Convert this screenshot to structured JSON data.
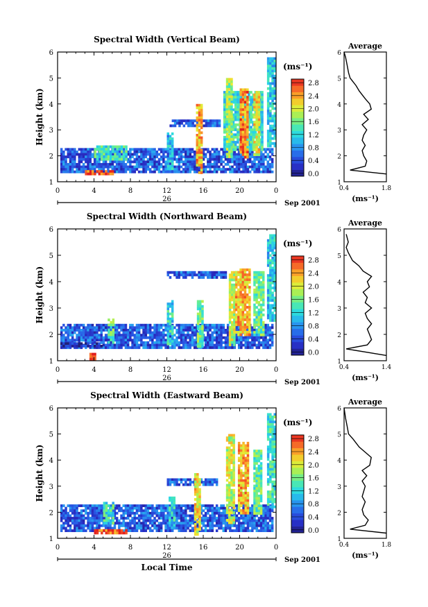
{
  "chart_data": [
    {
      "type": "heatmap",
      "title": "Spectral Width (Vertical Beam)",
      "ylabel": "Height (km)",
      "xlabel": "",
      "x_ticks": [
        "0",
        "4",
        "8",
        "12",
        "16",
        "20",
        "0"
      ],
      "y_ticks": [
        "1",
        "2",
        "3",
        "4",
        "5",
        "6"
      ],
      "xlim": [
        0,
        24
      ],
      "ylim": [
        1,
        6
      ],
      "date_day": "26",
      "date_suffix": "Sep 2001",
      "colorbar": {
        "unit": "(ms⁻¹)",
        "ticks": [
          "0.0",
          "0.4",
          "0.8",
          "1.2",
          "1.6",
          "2.0",
          "2.4",
          "2.8"
        ],
        "range": [
          0.0,
          3.0
        ]
      },
      "features": [
        {
          "x": [
            0.3,
            23.5
          ],
          "y": [
            1.35,
            2.3
          ],
          "v": 0.6
        },
        {
          "x": [
            3.0,
            6.0
          ],
          "y": [
            1.3,
            1.45
          ],
          "v": 2.8
        },
        {
          "x": [
            4.0,
            7.5
          ],
          "y": [
            1.9,
            2.4
          ],
          "v": 1.4
        },
        {
          "x": [
            12.0,
            12.5
          ],
          "y": [
            1.5,
            2.9
          ],
          "v": 1.1
        },
        {
          "x": [
            12.3,
            17.8
          ],
          "y": [
            3.2,
            3.4
          ],
          "v": 0.6
        },
        {
          "x": [
            15.2,
            15.8
          ],
          "y": [
            1.4,
            4.0
          ],
          "v": 2.4
        },
        {
          "x": [
            18.2,
            22.5
          ],
          "y": [
            2.2,
            4.5
          ],
          "v": 1.4
        },
        {
          "x": [
            18.5,
            19.2
          ],
          "y": [
            2.0,
            5.0
          ],
          "v": 1.8
        },
        {
          "x": [
            20.0,
            20.8
          ],
          "y": [
            2.0,
            4.6
          ],
          "v": 2.6
        },
        {
          "x": [
            21.5,
            22.0
          ],
          "y": [
            2.0,
            4.5
          ],
          "v": 2.2
        },
        {
          "x": [
            23.0,
            23.8
          ],
          "y": [
            2.4,
            5.8
          ],
          "v": 1.2
        }
      ],
      "profile": {
        "title": "Average",
        "xlabel": "(ms⁻¹)",
        "x_ticks": [
          "0.4",
          "1.8"
        ],
        "y_ticks": [
          "1",
          "2",
          "3",
          "4",
          "5",
          "6"
        ],
        "xlim": [
          0.4,
          1.8
        ],
        "ylim": [
          1,
          6
        ],
        "points": [
          [
            1.8,
            1.3
          ],
          [
            0.6,
            1.45
          ],
          [
            1.1,
            1.6
          ],
          [
            1.15,
            1.8
          ],
          [
            1.05,
            2.0
          ],
          [
            1.0,
            2.2
          ],
          [
            1.1,
            2.4
          ],
          [
            1.0,
            2.6
          ],
          [
            1.05,
            2.8
          ],
          [
            1.15,
            3.0
          ],
          [
            1.0,
            3.2
          ],
          [
            1.2,
            3.4
          ],
          [
            1.05,
            3.6
          ],
          [
            1.3,
            3.8
          ],
          [
            1.25,
            4.0
          ],
          [
            1.1,
            4.2
          ],
          [
            0.9,
            4.5
          ],
          [
            0.8,
            4.7
          ],
          [
            0.6,
            5.0
          ],
          [
            0.55,
            5.2
          ],
          [
            0.5,
            5.5
          ],
          [
            0.45,
            5.8
          ],
          [
            0.4,
            6.0
          ]
        ]
      }
    },
    {
      "type": "heatmap",
      "title": "Spectral Width (Northward Beam)",
      "ylabel": "Height (km)",
      "xlabel": "",
      "x_ticks": [
        "0",
        "4",
        "8",
        "12",
        "16",
        "20",
        "0"
      ],
      "y_ticks": [
        "1",
        "2",
        "3",
        "4",
        "5",
        "6"
      ],
      "xlim": [
        0,
        24
      ],
      "ylim": [
        1,
        6
      ],
      "date_day": "26",
      "date_suffix": "Sep 2001",
      "colorbar": {
        "unit": "(ms⁻¹)",
        "ticks": [
          "0.0",
          "0.4",
          "0.8",
          "1.2",
          "1.6",
          "2.0",
          "2.4",
          "2.8"
        ],
        "range": [
          0.0,
          3.0
        ]
      },
      "features": [
        {
          "x": [
            0.3,
            23.5
          ],
          "y": [
            1.5,
            2.4
          ],
          "v": 0.6
        },
        {
          "x": [
            0.3,
            5.0
          ],
          "y": [
            1.55,
            1.7
          ],
          "v": 0.2
        },
        {
          "x": [
            3.5,
            4.0
          ],
          "y": [
            1.1,
            1.3
          ],
          "v": 2.8
        },
        {
          "x": [
            5.5,
            6.2
          ],
          "y": [
            1.7,
            2.6
          ],
          "v": 1.6
        },
        {
          "x": [
            12.0,
            12.5
          ],
          "y": [
            1.6,
            3.3
          ],
          "v": 1.3
        },
        {
          "x": [
            12.0,
            18.5
          ],
          "y": [
            4.2,
            4.4
          ],
          "v": 0.6
        },
        {
          "x": [
            15.3,
            15.8
          ],
          "y": [
            1.5,
            3.3
          ],
          "v": 1.6
        },
        {
          "x": [
            18.8,
            19.5
          ],
          "y": [
            1.6,
            4.4
          ],
          "v": 2.0
        },
        {
          "x": [
            19.5,
            21.0
          ],
          "y": [
            2.0,
            4.5
          ],
          "v": 2.4
        },
        {
          "x": [
            21.5,
            22.5
          ],
          "y": [
            2.0,
            4.4
          ],
          "v": 1.6
        },
        {
          "x": [
            23.0,
            23.8
          ],
          "y": [
            2.5,
            5.8
          ],
          "v": 1.2
        }
      ],
      "profile": {
        "title": "Average",
        "xlabel": "(ms⁻¹)",
        "x_ticks": [
          "0.4",
          "1.4"
        ],
        "y_ticks": [
          "1",
          "2",
          "3",
          "4",
          "5",
          "6"
        ],
        "xlim": [
          0.4,
          1.4
        ],
        "ylim": [
          1,
          6
        ],
        "points": [
          [
            1.4,
            1.2
          ],
          [
            0.45,
            1.45
          ],
          [
            0.95,
            1.6
          ],
          [
            1.05,
            1.8
          ],
          [
            1.0,
            2.0
          ],
          [
            0.95,
            2.2
          ],
          [
            1.05,
            2.4
          ],
          [
            0.95,
            2.6
          ],
          [
            0.9,
            2.8
          ],
          [
            1.05,
            3.0
          ],
          [
            0.9,
            3.2
          ],
          [
            0.95,
            3.4
          ],
          [
            0.85,
            3.6
          ],
          [
            1.0,
            3.8
          ],
          [
            0.95,
            4.0
          ],
          [
            1.05,
            4.2
          ],
          [
            0.85,
            4.4
          ],
          [
            0.75,
            4.6
          ],
          [
            0.6,
            4.8
          ],
          [
            0.5,
            5.1
          ],
          [
            0.45,
            5.3
          ],
          [
            0.5,
            5.5
          ],
          [
            0.45,
            5.8
          ]
        ]
      }
    },
    {
      "type": "heatmap",
      "title": "Spectral Width (Eastward Beam)",
      "ylabel": "Height (km)",
      "xlabel": "Local Time",
      "x_ticks": [
        "0",
        "4",
        "8",
        "12",
        "16",
        "20",
        "0"
      ],
      "y_ticks": [
        "1",
        "2",
        "3",
        "4",
        "5",
        "6"
      ],
      "xlim": [
        0,
        24
      ],
      "ylim": [
        1,
        6
      ],
      "date_day": "26",
      "date_suffix": "Sep 2001",
      "colorbar": {
        "unit": "(ms⁻¹)",
        "ticks": [
          "0.0",
          "0.4",
          "0.8",
          "1.2",
          "1.6",
          "2.0",
          "2.4",
          "2.8"
        ],
        "range": [
          0.0,
          3.0
        ]
      },
      "features": [
        {
          "x": [
            0.3,
            23.5
          ],
          "y": [
            1.25,
            2.3
          ],
          "v": 0.6
        },
        {
          "x": [
            4.0,
            7.5
          ],
          "y": [
            1.2,
            1.35
          ],
          "v": 2.8
        },
        {
          "x": [
            5.0,
            6.2
          ],
          "y": [
            1.6,
            2.4
          ],
          "v": 1.4
        },
        {
          "x": [
            12.0,
            17.5
          ],
          "y": [
            3.1,
            3.3
          ],
          "v": 0.6
        },
        {
          "x": [
            12.2,
            12.8
          ],
          "y": [
            1.4,
            2.6
          ],
          "v": 1.2
        },
        {
          "x": [
            15.0,
            15.6
          ],
          "y": [
            1.2,
            3.5
          ],
          "v": 2.2
        },
        {
          "x": [
            18.5,
            19.3
          ],
          "y": [
            1.6,
            5.0
          ],
          "v": 2.0
        },
        {
          "x": [
            19.8,
            20.8
          ],
          "y": [
            2.0,
            4.7
          ],
          "v": 2.4
        },
        {
          "x": [
            21.5,
            22.3
          ],
          "y": [
            2.0,
            4.4
          ],
          "v": 1.6
        },
        {
          "x": [
            23.0,
            23.8
          ],
          "y": [
            2.2,
            5.8
          ],
          "v": 1.4
        }
      ],
      "profile": {
        "title": "Average",
        "xlabel": "(ms⁻¹)",
        "x_ticks": [
          "0.4",
          "1.8"
        ],
        "y_ticks": [
          "1",
          "2",
          "3",
          "4",
          "5",
          "6"
        ],
        "xlim": [
          0.4,
          1.8
        ],
        "ylim": [
          1,
          6
        ],
        "points": [
          [
            1.8,
            1.2
          ],
          [
            0.6,
            1.35
          ],
          [
            1.1,
            1.5
          ],
          [
            1.2,
            1.7
          ],
          [
            1.05,
            1.9
          ],
          [
            1.0,
            2.1
          ],
          [
            1.1,
            2.4
          ],
          [
            1.0,
            2.6
          ],
          [
            1.05,
            2.8
          ],
          [
            1.1,
            3.0
          ],
          [
            1.0,
            3.2
          ],
          [
            1.15,
            3.4
          ],
          [
            1.0,
            3.6
          ],
          [
            1.25,
            3.8
          ],
          [
            1.3,
            4.1
          ],
          [
            1.1,
            4.3
          ],
          [
            0.9,
            4.5
          ],
          [
            0.7,
            4.8
          ],
          [
            0.55,
            5.0
          ],
          [
            0.5,
            5.3
          ],
          [
            0.45,
            5.6
          ],
          [
            0.4,
            6.0
          ]
        ]
      }
    }
  ]
}
